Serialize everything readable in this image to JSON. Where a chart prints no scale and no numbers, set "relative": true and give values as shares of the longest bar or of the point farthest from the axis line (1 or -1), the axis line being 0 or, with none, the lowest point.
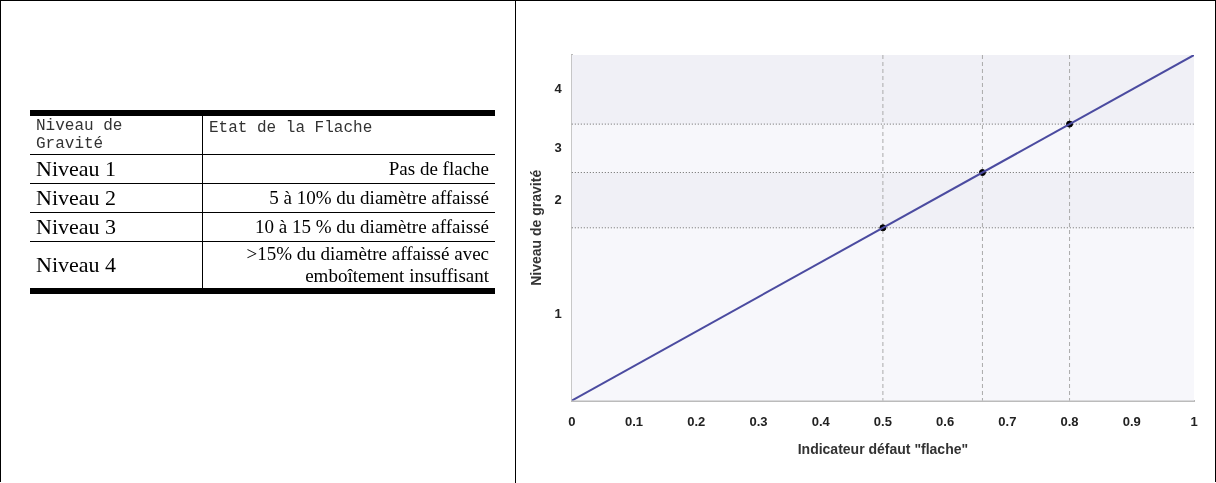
{
  "chart_data": [
    {
      "type": "other",
      "annotations": [
        "Niveau de Gravité",
        "Etat de la Flache",
        "Niveau 1",
        "Pas de flache",
        "Niveau 2",
        "5 à 10% du diamètre affaissé",
        "Niveau 3",
        "10 à 15 % du diamètre affaissé",
        "Niveau 4",
        ">15% du diamètre affaissé avec emboîtement insuffisant"
      ]
    },
    {
      "type": "line",
      "xlabel": "Indicateur défaut \"flache\"",
      "ylabel": "Niveau de gravité",
      "xlim": [
        0,
        1
      ],
      "xticks": [
        0,
        0.1,
        0.2,
        0.3,
        0.4,
        0.5,
        0.6,
        0.7,
        0.8,
        0.9,
        1
      ],
      "relative": true,
      "bands": [
        {
          "axis": "y",
          "from": 0,
          "to": 0.5,
          "label": "1",
          "color": "#f7f7fb"
        },
        {
          "axis": "y",
          "from": 0.5,
          "to": 0.66,
          "label": "2",
          "color": "#f0f0f6"
        },
        {
          "axis": "y",
          "from": 0.66,
          "to": 0.8,
          "label": "3",
          "color": "#f7f7fb"
        },
        {
          "axis": "y",
          "from": 0.8,
          "to": 1,
          "label": "4",
          "color": "#f0f0f6"
        }
      ],
      "grid": false,
      "legend": false,
      "series": [
        {
          "type": "line",
          "color": "#4b4ba0",
          "marker": "none",
          "x": [
            0,
            1
          ],
          "values": [
            0,
            1
          ]
        },
        {
          "type": "scatter",
          "color": "#000000",
          "marker": "circle",
          "x": [
            0.5,
            0.66,
            0.8
          ],
          "values": [
            0.5,
            0.66,
            0.8
          ]
        }
      ],
      "ref_lines": [
        {
          "axis": "y",
          "value": 0.5,
          "color": "#666666",
          "line_style": "dotted"
        },
        {
          "axis": "y",
          "value": 0.66,
          "color": "#666666",
          "line_style": "dotted"
        },
        {
          "axis": "y",
          "value": 0.8,
          "color": "#666666",
          "line_style": "dotted"
        },
        {
          "axis": "x",
          "value": 0.5,
          "color": "#aaaaaa",
          "line_style": "dashed"
        },
        {
          "axis": "x",
          "value": 0.66,
          "color": "#aaaaaa",
          "line_style": "dashed"
        },
        {
          "axis": "x",
          "value": 0.8,
          "color": "#aaaaaa",
          "line_style": "dashed"
        }
      ]
    }
  ]
}
